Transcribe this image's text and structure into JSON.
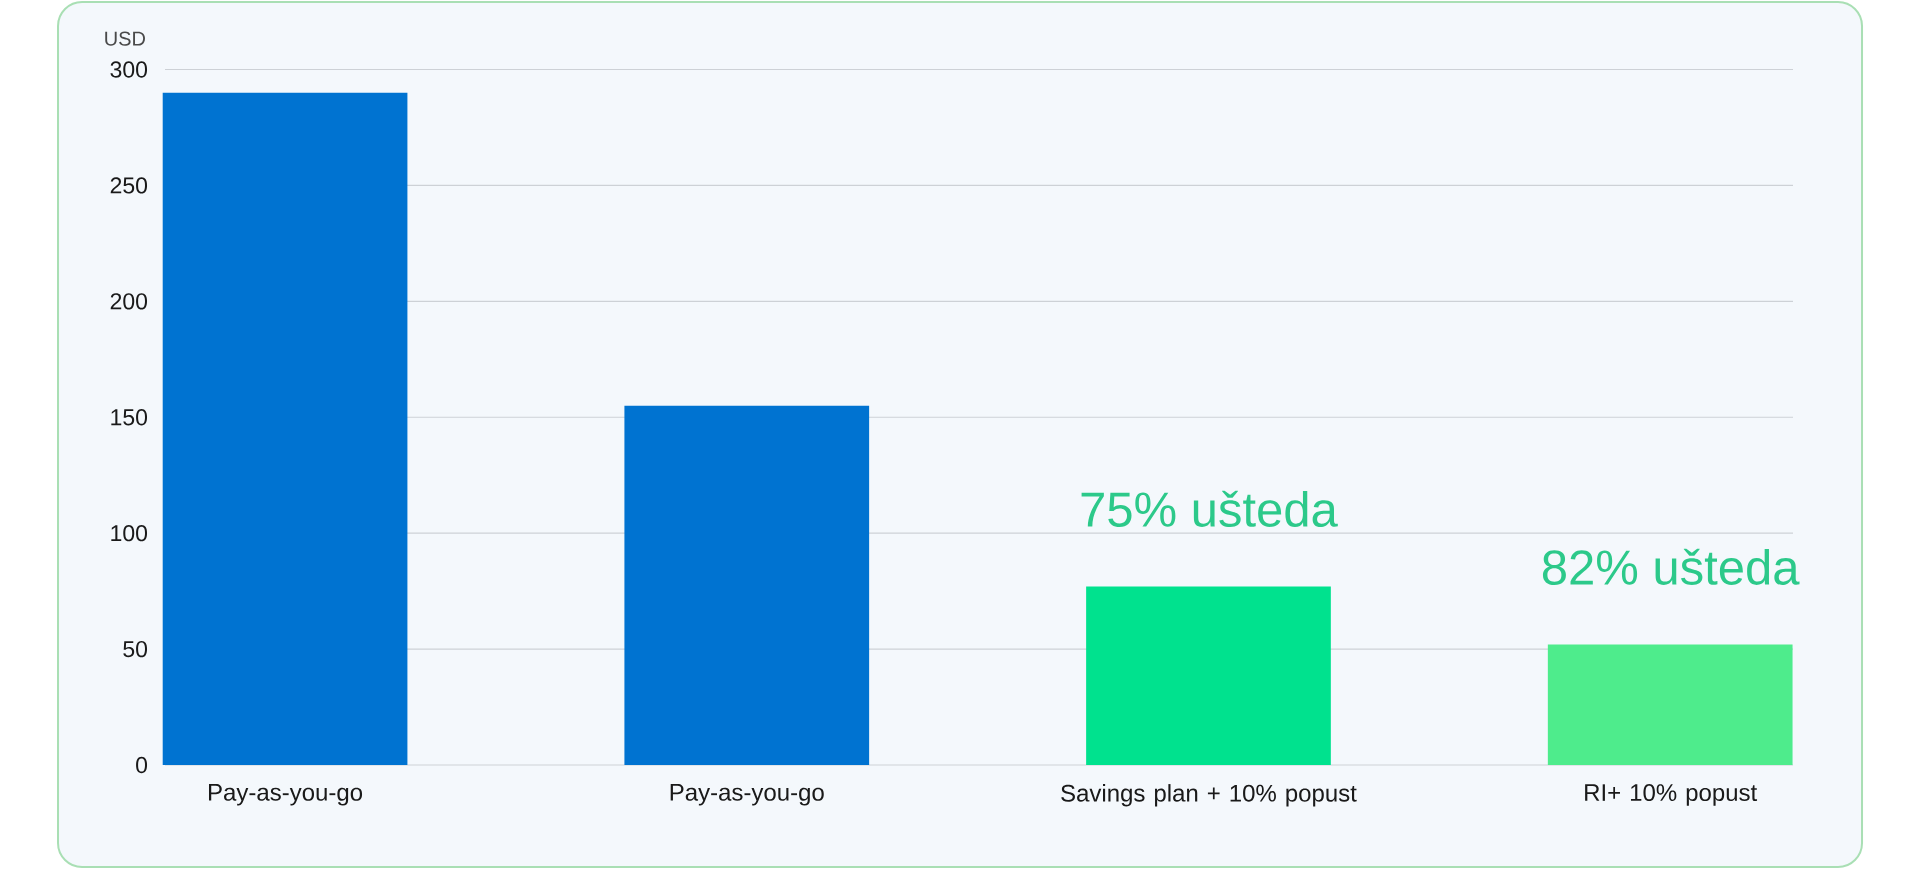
{
  "chart_data": {
    "type": "bar",
    "ylabel": "USD",
    "categories": [
      "Pay-as-you-go",
      "Pay-as-you-go",
      "Savings plan + 10% popust",
      "RI+ 10% popust"
    ],
    "values": [
      290,
      155,
      77,
      52
    ],
    "colors": [
      "#0073d1",
      "#0073d1",
      "#00e28e",
      "#4eec8c"
    ],
    "ylim": [
      0,
      300
    ],
    "yticks": [
      0,
      50,
      100,
      150,
      200,
      250,
      300
    ],
    "grid": "y",
    "annotations": [
      {
        "text": "75% ušteda",
        "x": "Savings plan + 10% popust",
        "y": 77
      },
      {
        "text": "82% ušteda",
        "x": "RI+ 10% popust",
        "y": 52
      }
    ]
  }
}
